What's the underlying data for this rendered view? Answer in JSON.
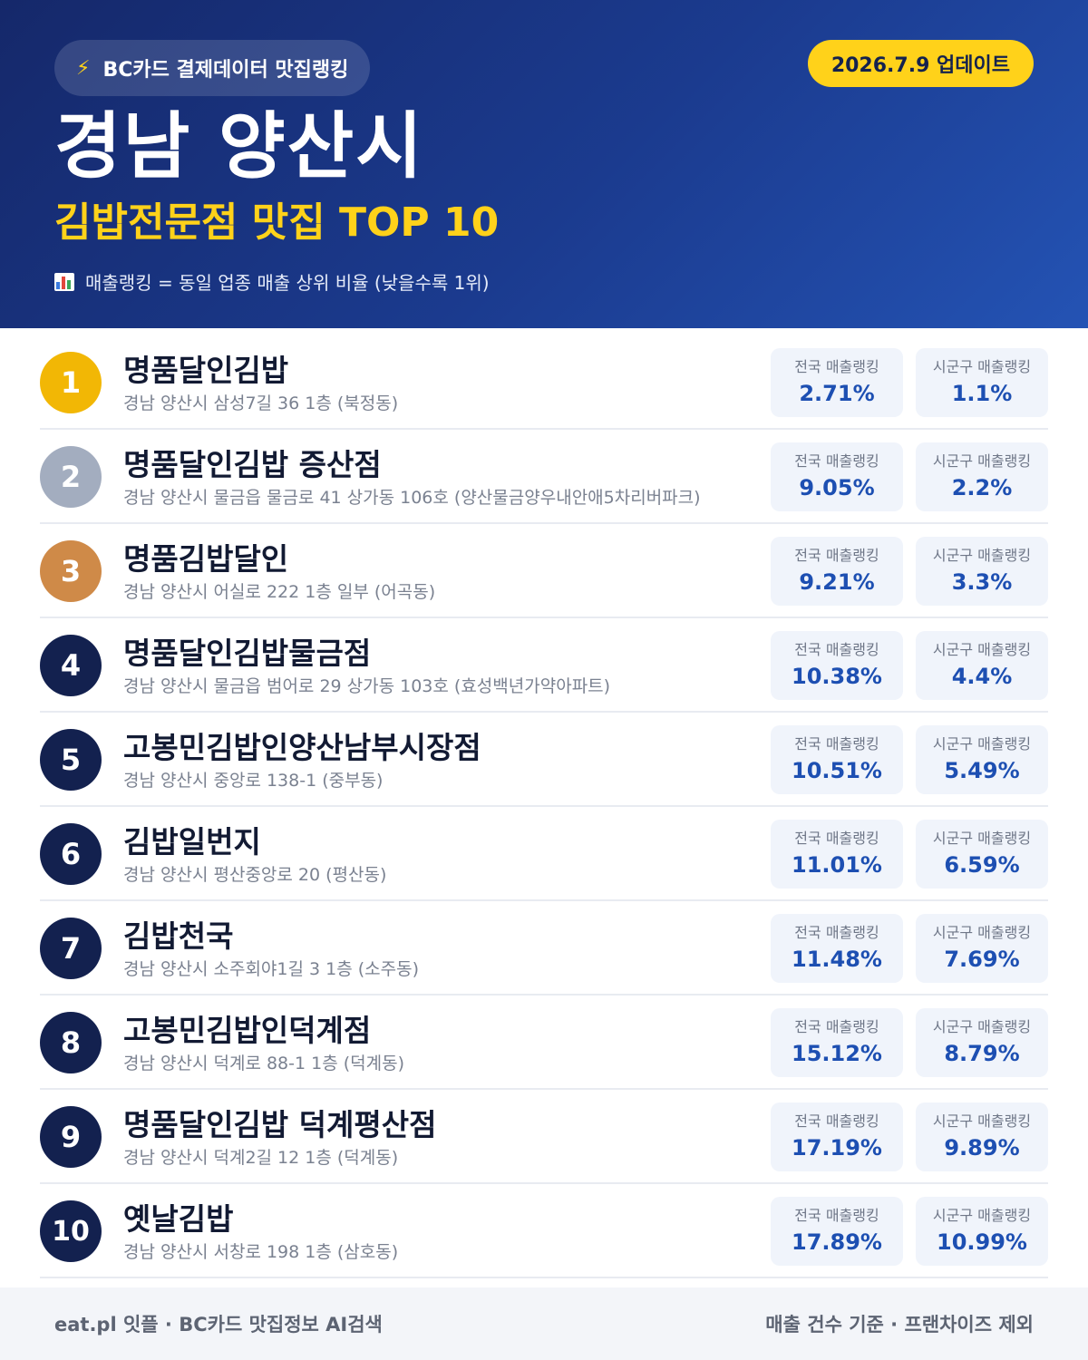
{
  "header": {
    "source_label": "BC카드 결제데이터 맛집랭킹",
    "update_label": "2026.7.9 업데이트",
    "region": "경남 양산시",
    "category": "김밥전문점 맛집 TOP 10",
    "legend": "매출랭킹 = 동일 업종 매출 상위 비율 (낮을수록 1위)",
    "icons": {
      "source": "lightning-bolt-icon",
      "legend": "bar-chart-icon"
    }
  },
  "colors": {
    "gold": "#f2b705",
    "silver": "#a3adbf",
    "bronze": "#cf8a48",
    "navy": "#13214f",
    "accent_yellow": "#ffd21a",
    "value_blue": "#1d4fb2"
  },
  "stat_labels": {
    "national": "전국 매출랭킹",
    "district": "시군구 매출랭킹"
  },
  "rankings": [
    {
      "rank": "1",
      "name": "명품달인김밥",
      "address": "경남 양산시 삼성7길 36 1층 (북정동)",
      "national": "2.71%",
      "district": "1.1%",
      "badge_color": "#f2b705"
    },
    {
      "rank": "2",
      "name": "명품달인김밥 증산점",
      "address": "경남 양산시 물금읍 물금로 41 상가동 106호 (양산물금양우내안애5차리버파크)",
      "national": "9.05%",
      "district": "2.2%",
      "badge_color": "#a3adbf"
    },
    {
      "rank": "3",
      "name": "명품김밥달인",
      "address": "경남 양산시 어실로 222 1층 일부 (어곡동)",
      "national": "9.21%",
      "district": "3.3%",
      "badge_color": "#cf8a48"
    },
    {
      "rank": "4",
      "name": "명품달인김밥물금점",
      "address": "경남 양산시 물금읍 범어로 29 상가동 103호 (효성백년가약아파트)",
      "national": "10.38%",
      "district": "4.4%",
      "badge_color": "#13214f"
    },
    {
      "rank": "5",
      "name": "고봉민김밥인양산남부시장점",
      "address": "경남 양산시 중앙로 138-1 (중부동)",
      "national": "10.51%",
      "district": "5.49%",
      "badge_color": "#13214f"
    },
    {
      "rank": "6",
      "name": "김밥일번지",
      "address": "경남 양산시 평산중앙로 20 (평산동)",
      "national": "11.01%",
      "district": "6.59%",
      "badge_color": "#13214f"
    },
    {
      "rank": "7",
      "name": "김밥천국",
      "address": "경남 양산시 소주회야1길 3 1층 (소주동)",
      "national": "11.48%",
      "district": "7.69%",
      "badge_color": "#13214f"
    },
    {
      "rank": "8",
      "name": "고봉민김밥인덕계점",
      "address": "경남 양산시 덕계로 88-1 1층 (덕계동)",
      "national": "15.12%",
      "district": "8.79%",
      "badge_color": "#13214f"
    },
    {
      "rank": "9",
      "name": "명품달인김밥 덕계평산점",
      "address": "경남 양산시 덕계2길 12 1층 (덕계동)",
      "national": "17.19%",
      "district": "9.89%",
      "badge_color": "#13214f"
    },
    {
      "rank": "10",
      "name": "옛날김밥",
      "address": "경남 양산시 서창로 198 1층 (삼호동)",
      "national": "17.89%",
      "district": "10.99%",
      "badge_color": "#13214f"
    }
  ],
  "footer": {
    "left": "eat.pl 잇플 · BC카드 맛집정보 AI검색",
    "right": "매출 건수 기준 · 프랜차이즈 제외"
  }
}
